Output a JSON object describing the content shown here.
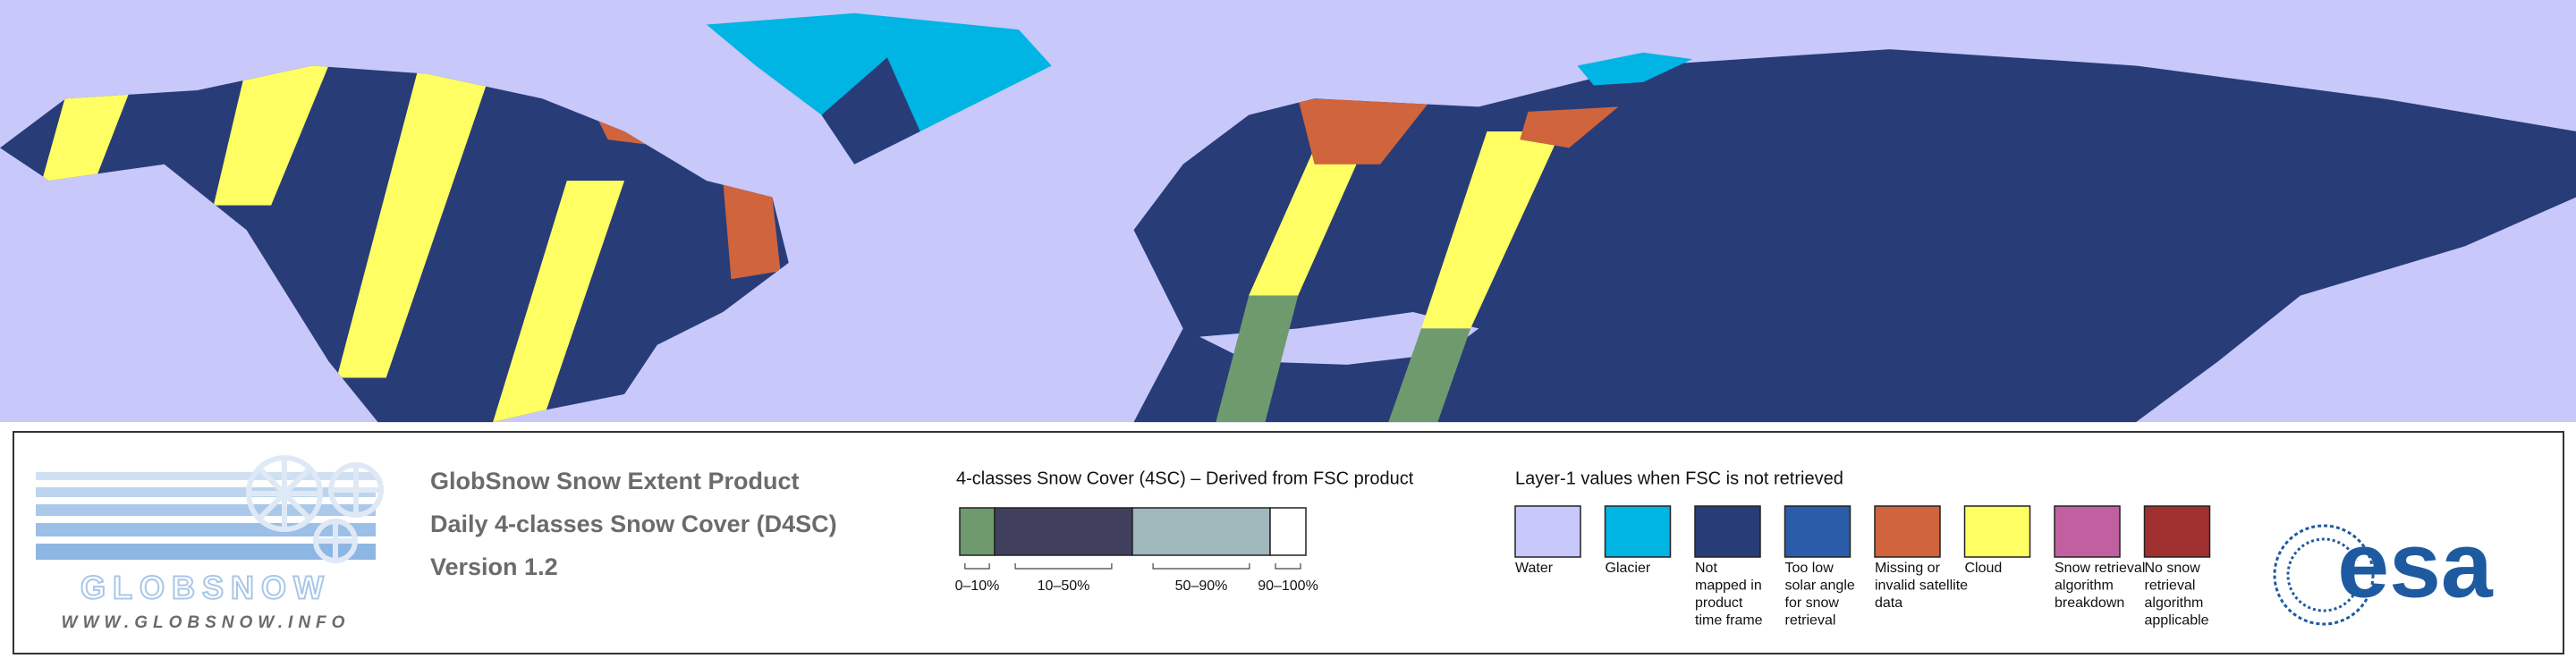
{
  "logo": {
    "name": "GLOBSNOW",
    "url": "WWW.GLOBSNOW.INFO"
  },
  "product": {
    "lines": [
      "GlobSnow Snow Extent Product",
      "Daily 4-classes Snow Cover (D4SC)",
      "Version 1.2"
    ]
  },
  "snow_cover": {
    "title": "4-classes Snow Cover (4SC) – Derived from FSC product",
    "classes": [
      {
        "label": "0–10%",
        "color": "#6e9a6e"
      },
      {
        "label": "10–50%",
        "color": "#40405e"
      },
      {
        "label": "50–90%",
        "color": "#a0b8bc"
      },
      {
        "label": "90–100%",
        "color": "#ffffff"
      }
    ]
  },
  "layer1": {
    "title": "Layer-1 values when FSC is not retrieved",
    "classes": [
      {
        "label_lines": [
          "Water"
        ],
        "color": "#c8c8fa"
      },
      {
        "label_lines": [
          "Glacier"
        ],
        "color": "#00b4e4"
      },
      {
        "label_lines": [
          "Not",
          "mapped in",
          "product",
          "time frame"
        ],
        "color": "#283c78"
      },
      {
        "label_lines": [
          "Too low",
          "solar angle",
          "for snow",
          "retrieval"
        ],
        "color": "#2a5caa"
      },
      {
        "label_lines": [
          "Missing or",
          "invalid satellite",
          "data"
        ],
        "color": "#d0643c"
      },
      {
        "label_lines": [
          "Cloud"
        ],
        "color": "#ffff64"
      },
      {
        "label_lines": [
          "Snow retrieval",
          "algorithm",
          "breakdown"
        ],
        "color": "#c060a0"
      },
      {
        "label_lines": [
          "No snow",
          "retrieval",
          "algorithm",
          "applicable"
        ],
        "color": "#a03030"
      }
    ]
  },
  "esa": {
    "name": "esa"
  }
}
